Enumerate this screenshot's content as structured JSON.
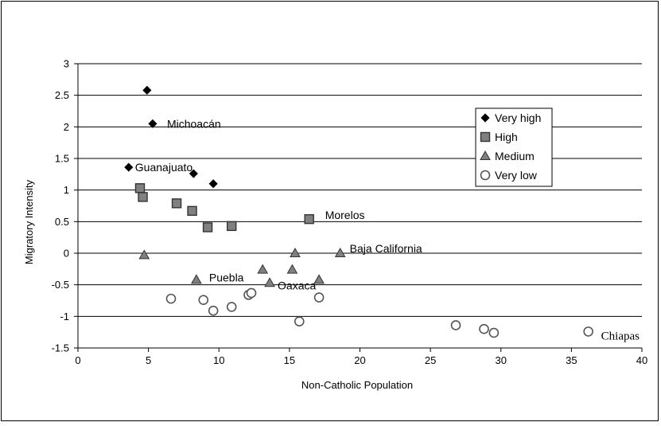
{
  "chart_data": {
    "type": "scatter",
    "xlabel": "Non-Catholic Population",
    "ylabel": "Migratory Intensity",
    "xlim": [
      0,
      40
    ],
    "ylim": [
      -1.5,
      3
    ],
    "x_ticks": [
      "0",
      "5",
      "10",
      "15",
      "20",
      "25",
      "30",
      "35",
      "40"
    ],
    "y_ticks": [
      "3",
      "2.5",
      "2",
      "1.5",
      "1",
      "0.5",
      "0",
      "-0.5",
      "-1",
      "-1.5"
    ],
    "grid": "horizontal",
    "legend_position": "right",
    "series": [
      {
        "name": "Very high",
        "marker": "diamond",
        "color": "#000000",
        "points": [
          [
            4.9,
            2.58
          ],
          [
            5.3,
            2.05
          ],
          [
            3.6,
            1.36
          ],
          [
            8.2,
            1.26
          ],
          [
            9.6,
            1.1
          ]
        ]
      },
      {
        "name": "High",
        "marker": "square",
        "color": "#808080",
        "points": [
          [
            4.4,
            1.03
          ],
          [
            4.6,
            0.89
          ],
          [
            7.0,
            0.79
          ],
          [
            8.1,
            0.67
          ],
          [
            9.2,
            0.41
          ],
          [
            10.9,
            0.43
          ],
          [
            16.4,
            0.54
          ]
        ]
      },
      {
        "name": "Medium",
        "marker": "triangle",
        "color": "#808080",
        "points": [
          [
            4.7,
            -0.03
          ],
          [
            8.4,
            -0.42
          ],
          [
            13.1,
            -0.26
          ],
          [
            13.6,
            -0.47
          ],
          [
            15.2,
            -0.26
          ],
          [
            15.4,
            0.0
          ],
          [
            17.1,
            -0.42
          ],
          [
            18.6,
            0.0
          ]
        ]
      },
      {
        "name": "Very low",
        "marker": "circle",
        "color": "#ffffff",
        "points": [
          [
            6.6,
            -0.72
          ],
          [
            8.9,
            -0.74
          ],
          [
            9.6,
            -0.91
          ],
          [
            10.9,
            -0.85
          ],
          [
            12.1,
            -0.66
          ],
          [
            12.3,
            -0.63
          ],
          [
            15.7,
            -1.08
          ],
          [
            17.1,
            -0.7
          ],
          [
            26.8,
            -1.14
          ],
          [
            28.8,
            -1.2
          ],
          [
            29.5,
            -1.26
          ],
          [
            36.2,
            -1.24
          ]
        ]
      }
    ],
    "annotations": [
      {
        "text": "Michoacán",
        "x": 5.3,
        "y": 2.05
      },
      {
        "text": "Guanajuato",
        "x": 3.6,
        "y": 1.36
      },
      {
        "text": "Morelos",
        "x": 16.4,
        "y": 0.54
      },
      {
        "text": "Baja California",
        "x": 18.6,
        "y": 0.0
      },
      {
        "text": "Puebla",
        "x": 8.4,
        "y": -0.42
      },
      {
        "text": "Oaxaca",
        "x": 13.6,
        "y": -0.47
      },
      {
        "text": "Chiapas",
        "x": 36.2,
        "y": -1.24
      }
    ]
  }
}
